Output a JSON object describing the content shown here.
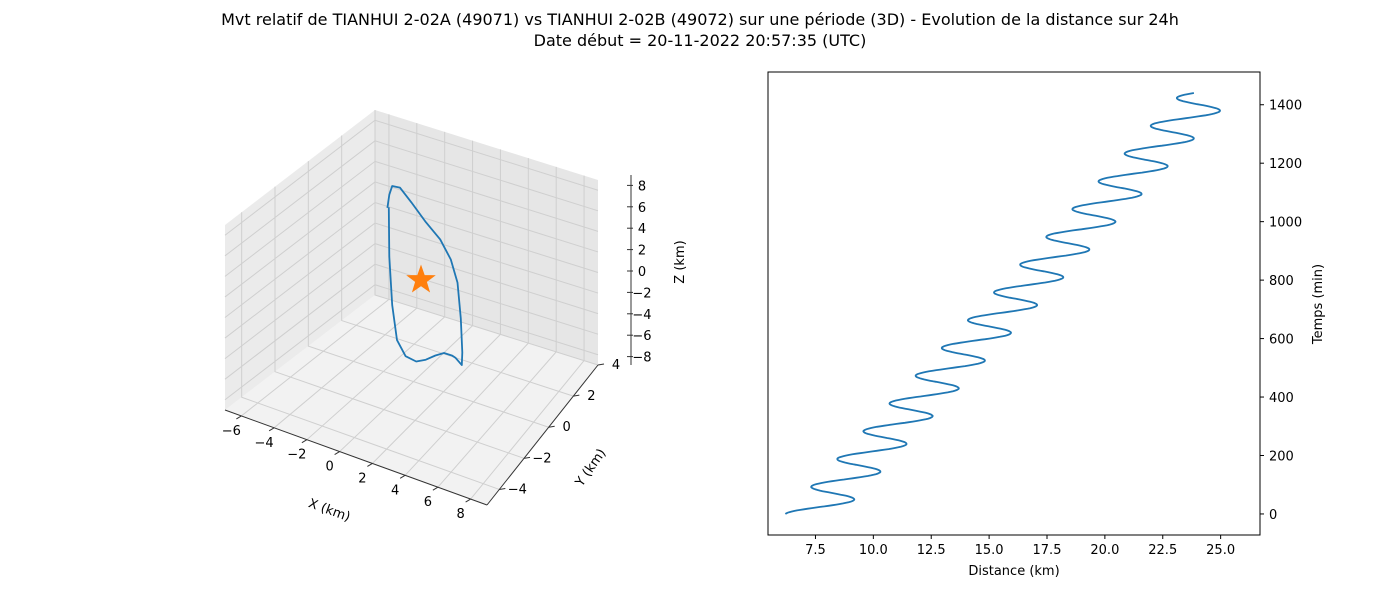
{
  "title_line1": "Mvt relatif de TIANHUI 2-02A (49071) vs TIANHUI 2-02B (49072) sur une période (3D) - Evolution de la distance sur 24h",
  "title_line2": "Date début = 20-11-2022 20:57:35 (UTC)",
  "colors": {
    "series": "#1f77b4",
    "marker": "#ff7f0e",
    "pane": "#f2f2f2",
    "grid": "#cfcfcf"
  },
  "chart_data": [
    {
      "type": "line3d",
      "xlabel": "X (km)",
      "ylabel": "Y (km)",
      "zlabel": "Z (km)",
      "xlim": [
        -7,
        9
      ],
      "ylim": [
        -5,
        4
      ],
      "zlim": [
        -9,
        9
      ],
      "xticks": [
        "−6",
        "−4",
        "−2",
        "0",
        "2",
        "4",
        "6",
        "8"
      ],
      "yticks": [
        "−4",
        "−2",
        "0",
        "2",
        "4"
      ],
      "zticks": [
        "8",
        "6",
        "4",
        "2",
        "0",
        "−2",
        "−4",
        "−6",
        "−8"
      ],
      "grid": true,
      "marker": {
        "shape": "star",
        "x": 0,
        "y": 0,
        "z": 0
      },
      "trajectory_xz": [
        [
          -6.7,
          7.0
        ],
        [
          -6.6,
          3.0
        ],
        [
          -6.0,
          -1.0
        ],
        [
          -5.0,
          -4.0
        ],
        [
          -3.2,
          -5.6
        ],
        [
          -1.0,
          -6.4
        ],
        [
          1.0,
          -6.6
        ],
        [
          3.0,
          -6.6
        ],
        [
          4.8,
          -6.7
        ],
        [
          6.5,
          -7.2
        ],
        [
          7.2,
          -7.5
        ],
        [
          8.5,
          -8.3
        ],
        [
          8.6,
          -7.3
        ],
        [
          8.3,
          -4.5
        ],
        [
          7.6,
          -1.5
        ],
        [
          6.2,
          0.6
        ],
        [
          4.0,
          2.6
        ],
        [
          1.0,
          4.5
        ],
        [
          -2.0,
          6.6
        ],
        [
          -4.4,
          8.2
        ],
        [
          -6.0,
          8.6
        ],
        [
          -6.6,
          8.0
        ],
        [
          -7.0,
          7.0
        ]
      ]
    },
    {
      "type": "line",
      "xlabel": "Distance (km)",
      "ylabel": "Temps (min)",
      "xlim": [
        5.45,
        26.7
      ],
      "ylim": [
        -72,
        1512
      ],
      "xticks": [
        7.5,
        10.0,
        12.5,
        15.0,
        17.5,
        20.0,
        22.5,
        25.0
      ],
      "yticks": [
        0,
        200,
        400,
        600,
        800,
        1000,
        1200,
        1400
      ],
      "grid": false,
      "series": [
        {
          "t_min": 0,
          "t_max": 1440,
          "distance_trend": {
            "at_t0": 7.4,
            "at_t_max": 24.5
          },
          "oscillation_amplitude_km": 1.2,
          "oscillation_period_min": 95
        }
      ]
    }
  ]
}
